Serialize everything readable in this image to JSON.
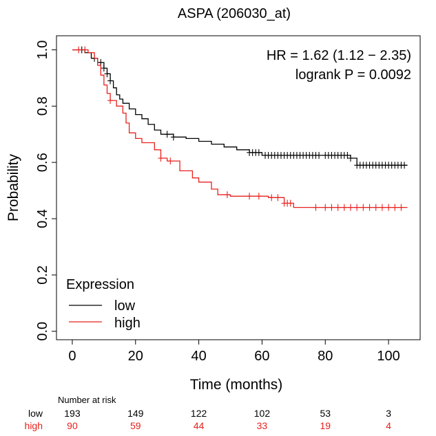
{
  "chart_data": {
    "type": "line",
    "title": "ASPA (206030_at)",
    "xlabel": "Time (months)",
    "ylabel": "Probability",
    "xlim": [
      -5,
      110
    ],
    "ylim": [
      -0.03,
      1.05
    ],
    "xticks": [
      0,
      20,
      40,
      60,
      80,
      100
    ],
    "yticks": [
      "0.0",
      "0.2",
      "0.4",
      "0.6",
      "0.8",
      "1.0"
    ],
    "annotations": {
      "hr": "HR = 1.62 (1.12 − 2.35)",
      "logrank": "logrank P = 0.0092"
    },
    "legend": {
      "title": "Expression",
      "placement": "bottom-left",
      "entries": [
        {
          "label": "low",
          "color": "#000000"
        },
        {
          "label": "high",
          "color": "#e8201c"
        }
      ]
    },
    "series": [
      {
        "name": "low",
        "color": "#000000",
        "steps": [
          [
            0,
            1.0
          ],
          [
            4,
            0.99
          ],
          [
            6,
            0.97
          ],
          [
            8,
            0.955
          ],
          [
            10,
            0.935
          ],
          [
            11,
            0.915
          ],
          [
            12,
            0.89
          ],
          [
            13,
            0.865
          ],
          [
            14,
            0.84
          ],
          [
            15,
            0.825
          ],
          [
            16,
            0.81
          ],
          [
            18,
            0.79
          ],
          [
            20,
            0.77
          ],
          [
            22,
            0.755
          ],
          [
            24,
            0.735
          ],
          [
            26,
            0.715
          ],
          [
            28,
            0.7
          ],
          [
            32,
            0.69
          ],
          [
            36,
            0.685
          ],
          [
            40,
            0.675
          ],
          [
            44,
            0.665
          ],
          [
            48,
            0.655
          ],
          [
            52,
            0.645
          ],
          [
            56,
            0.635
          ],
          [
            60,
            0.625
          ],
          [
            88,
            0.615
          ],
          [
            90,
            0.59
          ],
          [
            106,
            0.59
          ]
        ],
        "censors": [
          3,
          7,
          9,
          10,
          11,
          12,
          30,
          32,
          56,
          57,
          58,
          59,
          61,
          62,
          63,
          64,
          65,
          66,
          67,
          68,
          69,
          70,
          71,
          72,
          73,
          74,
          75,
          76,
          77,
          78,
          80,
          81,
          82,
          83,
          84,
          85,
          86,
          87,
          88,
          90,
          91,
          92,
          93,
          94,
          95,
          96,
          97,
          98,
          99,
          100,
          101,
          102,
          103,
          104,
          105
        ]
      },
      {
        "name": "high",
        "color": "#e8201c",
        "steps": [
          [
            0,
            1.0
          ],
          [
            5,
            0.99
          ],
          [
            7,
            0.97
          ],
          [
            8,
            0.945
          ],
          [
            9,
            0.91
          ],
          [
            10,
            0.875
          ],
          [
            11,
            0.845
          ],
          [
            12,
            0.82
          ],
          [
            14,
            0.8
          ],
          [
            16,
            0.775
          ],
          [
            17,
            0.74
          ],
          [
            18,
            0.705
          ],
          [
            20,
            0.685
          ],
          [
            22,
            0.67
          ],
          [
            26,
            0.645
          ],
          [
            28,
            0.615
          ],
          [
            30,
            0.605
          ],
          [
            34,
            0.57
          ],
          [
            38,
            0.545
          ],
          [
            40,
            0.53
          ],
          [
            44,
            0.505
          ],
          [
            46,
            0.485
          ],
          [
            50,
            0.48
          ],
          [
            62,
            0.475
          ],
          [
            67,
            0.455
          ],
          [
            70,
            0.44
          ],
          [
            106,
            0.44
          ]
        ],
        "censors": [
          2,
          4,
          12,
          28,
          31,
          49,
          56,
          59,
          63,
          65,
          67,
          68,
          69,
          77,
          80,
          82,
          84,
          86,
          88,
          90,
          92,
          94,
          96,
          98,
          100,
          102,
          104
        ]
      }
    ],
    "risk_table": {
      "heading": "Number at risk",
      "times": [
        0,
        20,
        40,
        60,
        80,
        100
      ],
      "rows": [
        {
          "label": "low",
          "color": "#000000",
          "values": [
            "193",
            "149",
            "122",
            "102",
            "53",
            "3"
          ]
        },
        {
          "label": "high",
          "color": "#e8201c",
          "values": [
            "90",
            "59",
            "44",
            "33",
            "19",
            "4"
          ]
        }
      ]
    }
  }
}
